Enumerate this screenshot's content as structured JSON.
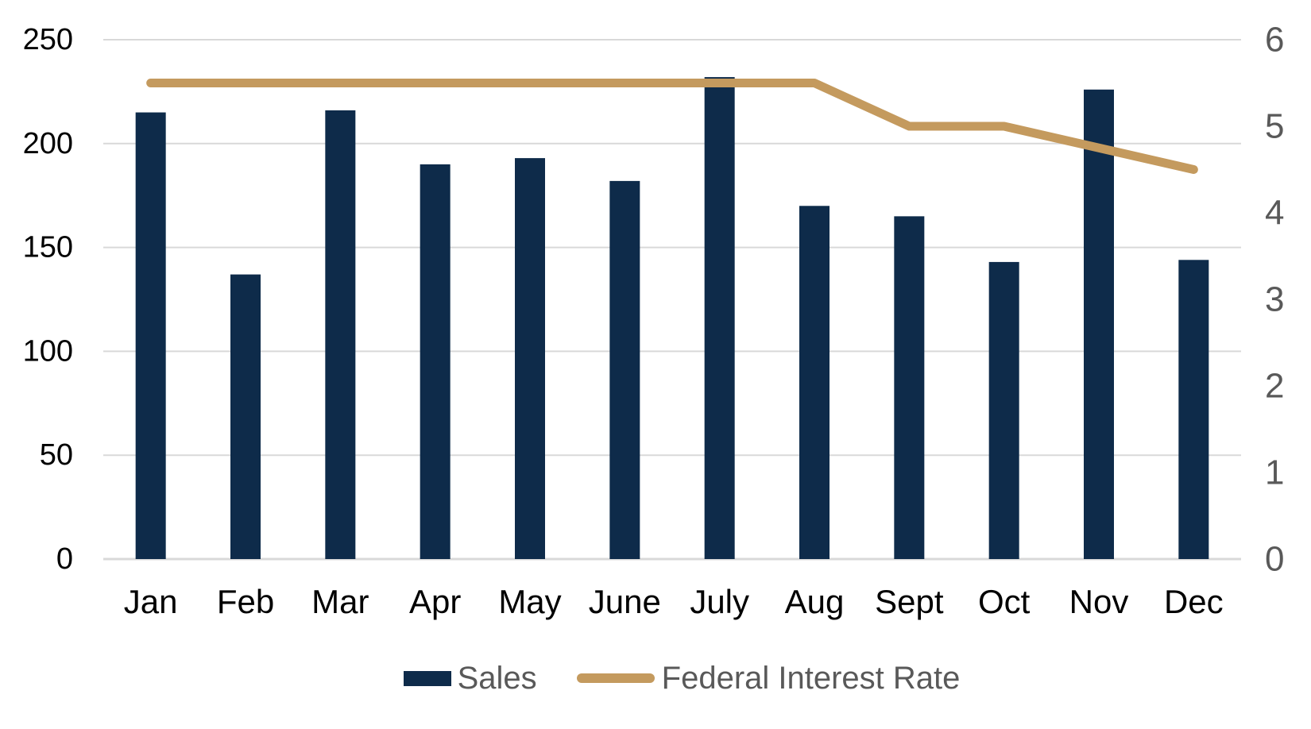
{
  "chart_data": {
    "type": "bar",
    "subtype": "combo-bar-line",
    "title": "",
    "categories": [
      "Jan",
      "Feb",
      "Mar",
      "Apr",
      "May",
      "June",
      "July",
      "Aug",
      "Sept",
      "Oct",
      "Nov",
      "Dec"
    ],
    "series": [
      {
        "name": "Sales",
        "type": "bar",
        "axis": "left",
        "color": "#0E2B4A",
        "values": [
          215,
          137,
          216,
          190,
          193,
          182,
          232,
          170,
          165,
          143,
          226,
          144
        ]
      },
      {
        "name": "Federal Interest Rate",
        "type": "line",
        "axis": "right",
        "color": "#C49A5E",
        "values": [
          5.5,
          5.5,
          5.5,
          5.5,
          5.5,
          5.5,
          5.5,
          5.5,
          5.0,
          5.0,
          4.75,
          4.5
        ]
      }
    ],
    "left_axis": {
      "min": 0,
      "max": 250,
      "step": 50,
      "tick_labels": [
        "0",
        "50",
        "100",
        "150",
        "200",
        "250"
      ],
      "label_color": "#000000"
    },
    "right_axis": {
      "min": 0,
      "max": 6,
      "step": 1,
      "tick_labels": [
        "0",
        "1",
        "2",
        "3",
        "4",
        "5",
        "6"
      ],
      "label_color": "#595959"
    },
    "xlabel": "",
    "ylabel": "",
    "grid": true,
    "gridline_color": "#D9D9D9",
    "legend_position": "bottom",
    "legend_text_color": "#595959",
    "category_label_color": "#000000",
    "background": "#FFFFFF"
  },
  "legend": {
    "items": [
      {
        "label": "Sales",
        "swatch": "bar",
        "color": "#0E2B4A"
      },
      {
        "label": "Federal Interest Rate",
        "swatch": "line",
        "color": "#C49A5E"
      }
    ]
  }
}
